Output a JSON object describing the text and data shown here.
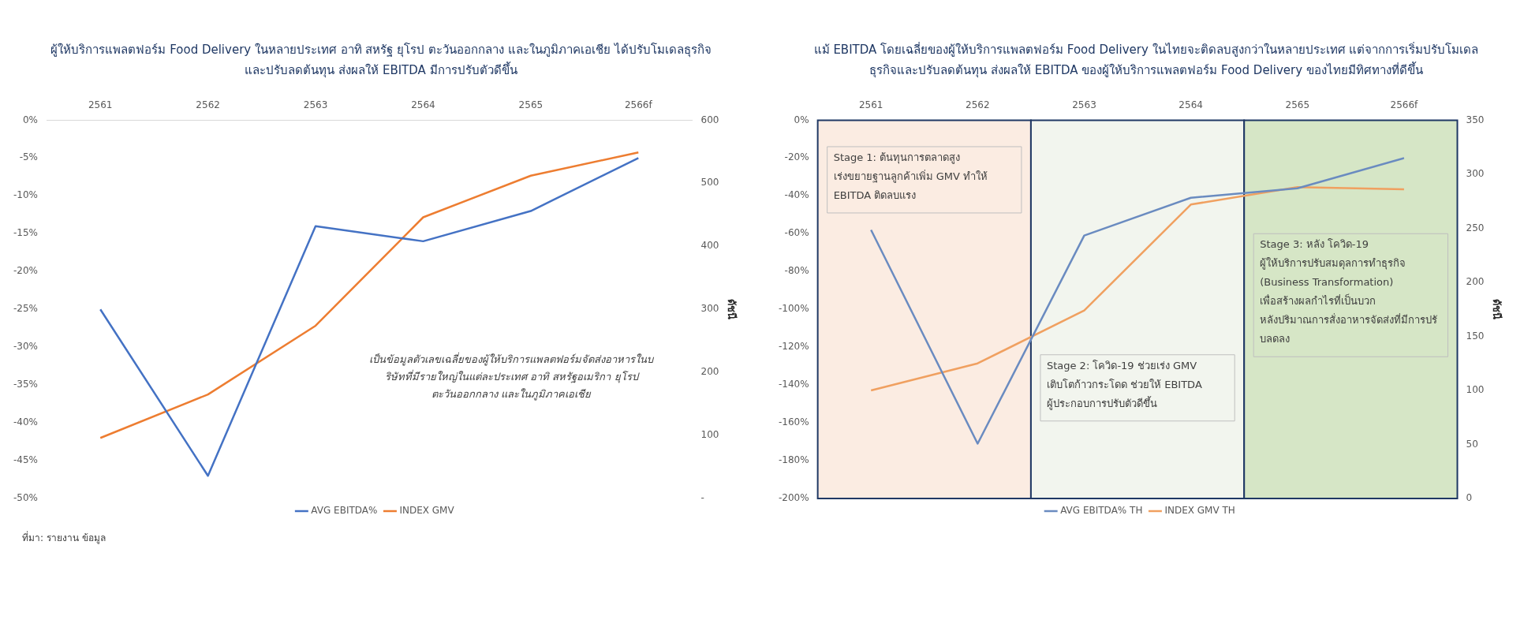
{
  "chart_data": [
    {
      "type": "line",
      "title": "ผู้ให้บริการแพลตฟอร์ม Food Delivery ในหลายประเทศ อาทิ สหรัฐ ยุโรป ตะวันออกกลาง และในภูมิภาคเอเชีย ได้ปรับโมเดลธุรกิจและปรับลดต้นทุน ส่งผลให้ EBITDA มีการปรับตัวดีขึ้น",
      "categories": [
        "2561",
        "2562",
        "2563",
        "2564",
        "2565",
        "2566f"
      ],
      "series": [
        {
          "name": "AVG EBITDA%",
          "color": "#4472c4",
          "values": [
            -25,
            -47,
            -14,
            -16,
            -12,
            -5
          ]
        },
        {
          "name": "INDEX GMV",
          "color": "#ed7d31",
          "axis": "y2",
          "values": [
            96,
            165,
            274,
            446,
            512,
            549
          ]
        }
      ],
      "ylim": [
        -50,
        0
      ],
      "yticks": [
        {
          "value": 0,
          "label": "0%"
        },
        {
          "value": -5,
          "label": "-5%"
        },
        {
          "value": -10,
          "label": "-10%"
        },
        {
          "value": -15,
          "label": "-15%"
        },
        {
          "value": -20,
          "label": "-20%"
        },
        {
          "value": -25,
          "label": "-25%"
        },
        {
          "value": -30,
          "label": "-30%"
        },
        {
          "value": -35,
          "label": "-35%"
        },
        {
          "value": -40,
          "label": "-40%"
        },
        {
          "value": -45,
          "label": "-45%"
        },
        {
          "value": -50,
          "label": "-50%"
        }
      ],
      "y2lim": [
        0,
        600
      ],
      "y2ticks": [
        {
          "value": 0,
          "label": "-"
        },
        100,
        200,
        300,
        400,
        500,
        600
      ],
      "y2label": "ดัชนี",
      "legend": "bottom",
      "annotations": [
        "เป็นข้อมูลตัวเลขเฉลี่ยของผู้ให้บริการแพลตฟอร์มจัดส่งอาหารในบริษัทที่มีรายใหญ่ในแต่ละประเทศ อาทิ สหรัฐอเมริกา ยุโรป ตะวันออกกลาง และในภูมิภาคเอเชีย",
        "ที่มา: รายงาน ข้อมูล"
      ]
    },
    {
      "type": "line",
      "title": "แม้ EBITDA โดยเฉลี่ยของผู้ให้บริการแพลตฟอร์ม Food Delivery ในไทยจะติดลบสูงกว่าในหลายประเทศ แต่จากการเริ่มปรับโมเดลธุรกิจและปรับลดต้นทุน ส่งผลให้ EBITDA ของผู้ให้บริการแพลตฟอร์ม Food Delivery ของไทยมีทิศทางที่ดีขึ้น",
      "categories": [
        "2561",
        "2562",
        "2563",
        "2564",
        "2565",
        "2566f"
      ],
      "series": [
        {
          "name": "AVG EBITDA% TH",
          "color": "#6a8bc0",
          "values": [
            -58,
            -171,
            -61,
            -41,
            -36,
            -20
          ]
        },
        {
          "name": "INDEX GMV TH",
          "color": "#f0a060",
          "axis": "y2",
          "values": [
            100,
            125,
            174,
            272,
            288,
            286
          ]
        }
      ],
      "ylim": [
        -200,
        0
      ],
      "yticks": [
        {
          "value": 0,
          "label": "0%"
        },
        {
          "value": -20,
          "label": "-20%"
        },
        {
          "value": -40,
          "label": "-40%"
        },
        {
          "value": -60,
          "label": "-60%"
        },
        {
          "value": -80,
          "label": "-80%"
        },
        {
          "value": -100,
          "label": "-100%"
        },
        {
          "value": -120,
          "label": "-120%"
        },
        {
          "value": -140,
          "label": "-140%"
        },
        {
          "value": -160,
          "label": "-160%"
        },
        {
          "value": -180,
          "label": "-180%"
        },
        {
          "value": -200,
          "label": "-200%"
        }
      ],
      "y2lim": [
        0,
        350
      ],
      "y2ticks": [
        0,
        50,
        100,
        150,
        200,
        250,
        300,
        350
      ],
      "y2label": "ดัชนี",
      "legend": "bottom",
      "bands": [
        {
          "axis": "x",
          "from": "2561",
          "to": "2562",
          "color": "#fbece2",
          "label": "Stage 1: ต้นทุนการตลาดสูง เร่งขยายฐานลูกค้าเพิ่ม GMV ทำให้ EBITDA ติดลบแรง"
        },
        {
          "axis": "x",
          "from": "2563",
          "to": "2564",
          "color": "#f2f5ee",
          "label": "Stage 2: โควิด-19 ช่วยเร่ง GMV เติบโตก้าวกระโดด ช่วยให้ EBITDA ผู้ประกอบการปรับตัวดีขึ้น"
        },
        {
          "axis": "x",
          "from": "2565",
          "to": "2566f",
          "color": "#d6e6c6",
          "label": "Stage 3: หลัง โควิด-19 ผู้ให้บริการปรับสมดุลการทำธุรกิจ (Business Transformation) เพื่อสร้างผลกำไรที่เป็นบวก หลังปริมาณการสั่งอาหารจัดส่งที่มีการปรับลดลง"
        }
      ]
    }
  ]
}
